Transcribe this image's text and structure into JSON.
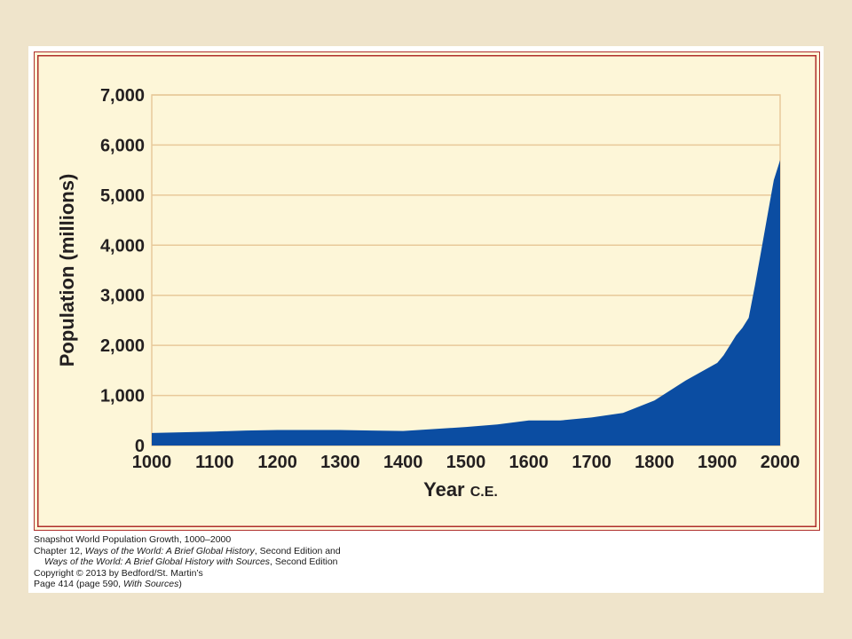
{
  "chart_data": {
    "type": "area",
    "xlabel": "Year",
    "xlabel_suffix": "C.E.",
    "ylabel": "Population (millions)",
    "xlim": [
      1000,
      2000
    ],
    "ylim": [
      0,
      7000
    ],
    "x_ticks": [
      1000,
      1100,
      1200,
      1300,
      1400,
      1500,
      1600,
      1700,
      1800,
      1900,
      2000
    ],
    "y_ticks": [
      0,
      1000,
      2000,
      3000,
      4000,
      5000,
      6000,
      7000
    ],
    "x_tick_labels": [
      "1000",
      "1100",
      "1200",
      "1300",
      "1400",
      "1500",
      "1600",
      "1700",
      "1800",
      "1900",
      "2000"
    ],
    "y_tick_labels": [
      "0",
      "1,000",
      "2,000",
      "3,000",
      "4,000",
      "5,000",
      "6,000",
      "7,000"
    ],
    "grid": true,
    "series": [
      {
        "x": [
          1000,
          1100,
          1150,
          1200,
          1250,
          1300,
          1350,
          1400,
          1450,
          1500,
          1550,
          1600,
          1650,
          1700,
          1750,
          1800,
          1850,
          1900,
          1910,
          1920,
          1930,
          1940,
          1950,
          1960,
          1970,
          1980,
          1990,
          2000
        ],
        "values": [
          250,
          280,
          300,
          310,
          310,
          310,
          300,
          290,
          330,
          370,
          420,
          500,
          500,
          560,
          650,
          900,
          1300,
          1650,
          1800,
          2000,
          2200,
          2350,
          2550,
          3200,
          3900,
          4600,
          5300,
          5700
        ],
        "color": "#0b4da2"
      }
    ]
  },
  "credits": {
    "line1": "Snapshot  World Population Growth, 1000–2000",
    "line2_a": "Chapter 12, ",
    "line2_title": "Ways of the World: A Brief Global History",
    "line2_b": ", Second Edition  and",
    "line3_title": "Ways of the World: A Brief Global History with Sources",
    "line3_b": ", Second Edition",
    "line4": "Copyright © 2013 by Bedford/St. Martin’s",
    "line5_a": "Page 414 (page 590, ",
    "line5_title": "With Sources",
    "line5_b": ")"
  },
  "colors": {
    "area": "#0b4da2",
    "plot_bg": "#fdf6d8",
    "grid": "#e8c99a",
    "frame": "#b0302c",
    "page_bg": "#efe4cb"
  }
}
